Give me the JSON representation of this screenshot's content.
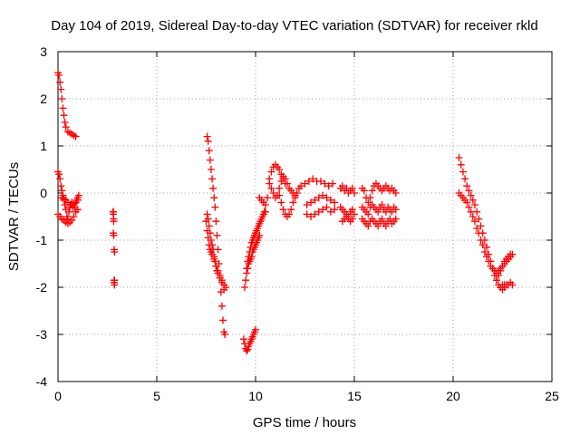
{
  "chart_data": {
    "type": "scatter",
    "title": "Day 104 of 2019, Sidereal Day-to-day VTEC variation (SDTVAR) for receiver rkld",
    "xlabel": "GPS time / hours",
    "ylabel": "SDTVAR / TECUs",
    "xlim": [
      0,
      25
    ],
    "ylim": [
      -4,
      3
    ],
    "xticks": [
      "0",
      "5",
      "10",
      "15",
      "20",
      "25"
    ],
    "yticks": [
      "-4",
      "-3",
      "-2",
      "-1",
      "0",
      "1",
      "2",
      "3"
    ],
    "grid": true,
    "marker": "+",
    "color": "#ff0000",
    "series": [
      {
        "name": "rkld",
        "x": [
          0.0,
          0.05,
          0.1,
          0.15,
          0.2,
          0.25,
          0.3,
          0.35,
          0.4,
          0.5,
          0.6,
          0.7,
          0.8,
          0.9,
          0.0,
          0.05,
          0.1,
          0.15,
          0.2,
          0.25,
          0.3,
          0.35,
          0.4,
          0.45,
          0.5,
          0.55,
          0.6,
          0.65,
          0.7,
          0.75,
          0.8,
          0.85,
          0.9,
          0.95,
          1.0,
          1.05,
          0.0,
          0.1,
          0.2,
          0.3,
          0.4,
          0.5,
          0.6,
          0.7,
          0.8,
          0.9,
          1.0,
          0.2,
          0.3,
          0.4,
          0.5,
          0.6,
          0.7,
          0.8,
          0.9,
          1.0,
          2.78,
          2.8,
          2.82,
          2.84,
          2.86,
          2.8,
          2.82,
          2.84,
          2.86,
          2.8,
          2.82,
          2.84,
          2.86,
          7.55,
          7.6,
          7.65,
          7.7,
          7.75,
          7.8,
          7.85,
          7.9,
          7.95,
          8.0,
          8.05,
          8.1,
          8.15,
          8.2,
          8.25,
          8.3,
          8.35,
          8.4,
          8.45,
          7.55,
          7.6,
          7.65,
          7.7,
          7.75,
          7.8,
          7.85,
          7.9,
          7.95,
          8.0,
          8.05,
          8.1,
          8.2,
          8.3,
          8.4,
          8.5,
          7.5,
          7.55,
          7.6,
          7.65,
          7.7,
          7.75,
          7.8,
          7.9,
          8.0,
          8.1,
          8.2,
          8.3,
          8.4,
          9.4,
          9.45,
          9.5,
          9.55,
          9.6,
          9.65,
          9.7,
          9.75,
          9.8,
          9.85,
          9.9,
          9.95,
          10.0,
          9.45,
          9.5,
          9.55,
          9.6,
          9.65,
          9.7,
          9.75,
          9.8,
          9.85,
          9.9,
          9.95,
          10.0,
          10.05,
          10.1,
          10.15,
          10.2,
          9.55,
          9.6,
          9.65,
          9.7,
          9.75,
          9.8,
          9.85,
          9.9,
          9.95,
          10.0,
          10.05,
          10.1,
          10.15,
          10.2,
          10.25,
          10.3,
          10.35,
          10.4,
          10.45,
          10.5,
          10.2,
          10.3,
          10.4,
          10.5,
          10.6,
          10.7,
          10.8,
          10.9,
          11.0,
          11.1,
          11.2,
          11.3,
          11.4,
          11.5,
          10.7,
          10.8,
          10.9,
          11.0,
          11.1,
          11.2,
          11.3,
          11.4,
          11.5,
          11.6,
          11.7,
          11.8,
          11.9,
          12.0,
          11.2,
          11.3,
          11.4,
          11.5,
          11.6,
          11.7,
          11.8,
          11.9,
          12.0,
          12.1,
          12.2,
          12.3,
          12.5,
          12.7,
          12.9,
          13.1,
          13.3,
          13.5,
          13.7,
          13.9,
          12.6,
          12.8,
          13.0,
          13.2,
          13.4,
          13.6,
          13.8,
          14.0,
          12.6,
          12.8,
          13.0,
          13.2,
          13.4,
          13.6,
          13.8,
          14.0,
          14.3,
          14.4,
          14.5,
          14.6,
          14.7,
          14.8,
          14.9,
          15.0,
          14.3,
          14.4,
          14.5,
          14.6,
          14.7,
          14.8,
          14.9,
          15.0,
          14.4,
          14.5,
          14.6,
          14.7,
          14.8,
          14.9,
          15.4,
          15.5,
          15.6,
          15.7,
          15.8,
          15.9,
          16.0,
          16.1,
          16.2,
          16.3,
          16.4,
          16.5,
          16.6,
          16.7,
          16.8,
          16.9,
          17.0,
          17.1,
          15.4,
          15.5,
          15.6,
          15.7,
          15.8,
          15.9,
          16.0,
          16.1,
          16.2,
          16.3,
          16.4,
          16.5,
          16.6,
          16.7,
          16.8,
          16.9,
          17.0,
          17.1,
          15.4,
          15.5,
          15.6,
          15.7,
          15.8,
          15.9,
          16.0,
          16.1,
          16.2,
          16.3,
          16.4,
          16.5,
          16.6,
          16.7,
          16.8,
          16.9,
          17.0,
          17.1,
          20.3,
          20.4,
          20.5,
          20.6,
          20.7,
          20.8,
          20.9,
          21.0,
          21.1,
          21.2,
          21.3,
          21.4,
          21.5,
          21.6,
          21.7,
          21.8,
          21.9,
          22.0,
          22.1,
          22.2,
          22.3,
          22.4,
          22.5,
          22.6,
          20.3,
          20.4,
          20.5,
          20.6,
          20.7,
          20.8,
          20.9,
          21.0,
          21.1,
          21.2,
          21.3,
          21.4,
          21.5,
          21.6,
          21.7,
          21.8,
          21.9,
          22.0,
          22.1,
          22.2,
          22.3,
          22.4,
          22.5,
          22.6,
          22.7,
          22.8,
          22.9,
          22.2,
          22.3,
          22.4,
          22.5,
          22.6,
          22.7,
          22.8,
          22.9,
          23.0,
          22.4,
          22.5,
          22.6,
          22.7,
          22.8,
          22.9,
          23.0
        ],
        "y": [
          2.55,
          2.5,
          2.35,
          2.2,
          2.0,
          1.8,
          1.65,
          1.5,
          1.4,
          1.3,
          1.28,
          1.25,
          1.22,
          1.2,
          0.45,
          0.4,
          0.3,
          0.15,
          0.05,
          -0.05,
          -0.15,
          -0.25,
          -0.35,
          -0.5,
          -0.55,
          -0.4,
          -0.3,
          -0.25,
          -0.2,
          -0.3,
          -0.25,
          -0.3,
          -0.2,
          -0.15,
          -0.1,
          -0.05,
          -0.45,
          -0.5,
          -0.55,
          -0.58,
          -0.62,
          -0.65,
          -0.62,
          -0.58,
          -0.5,
          -0.4,
          -0.35,
          -0.1,
          -0.12,
          -0.15,
          -0.2,
          -0.25,
          -0.25,
          -0.22,
          -0.2,
          -0.15,
          -0.4,
          -0.45,
          -0.55,
          -1.85,
          -1.95,
          -0.85,
          -0.9,
          -1.2,
          -1.25,
          -0.4,
          -0.6,
          -1.9,
          -1.85,
          1.2,
          1.1,
          0.9,
          0.7,
          0.5,
          0.3,
          0.1,
          -0.1,
          -0.3,
          -0.6,
          -0.9,
          -1.2,
          -1.5,
          -1.8,
          -2.1,
          -2.4,
          -2.7,
          -2.95,
          -3.0,
          -0.45,
          -0.55,
          -0.7,
          -0.85,
          -1.0,
          -1.1,
          -1.2,
          -1.35,
          -1.45,
          -1.55,
          -1.65,
          -1.7,
          -1.8,
          -1.85,
          -1.95,
          -2.0,
          -0.6,
          -0.8,
          -0.95,
          -1.1,
          -1.2,
          -1.25,
          -1.3,
          -1.4,
          -1.55,
          -1.65,
          -1.75,
          -1.9,
          -2.05,
          -3.1,
          -3.2,
          -3.3,
          -3.35,
          -3.32,
          -3.25,
          -3.2,
          -3.15,
          -3.1,
          -3.05,
          -3.0,
          -2.95,
          -2.9,
          -2.0,
          -1.85,
          -1.7,
          -1.6,
          -1.5,
          -1.45,
          -1.4,
          -1.35,
          -1.25,
          -1.2,
          -1.15,
          -1.1,
          -1.05,
          -1.0,
          -0.95,
          -0.9,
          -1.6,
          -1.45,
          -1.35,
          -1.25,
          -1.15,
          -1.05,
          -1.0,
          -0.95,
          -0.9,
          -0.85,
          -0.8,
          -0.75,
          -0.7,
          -0.65,
          -0.6,
          -0.55,
          -0.5,
          -0.45,
          -0.4,
          -0.4,
          -0.1,
          -0.15,
          -0.2,
          -0.25,
          -0.1,
          0.2,
          0.45,
          0.55,
          0.6,
          0.55,
          0.5,
          0.4,
          0.3,
          0.2,
          0.3,
          0.1,
          0.0,
          -0.1,
          -0.05,
          0.1,
          0.25,
          0.35,
          0.3,
          0.2,
          0.1,
          0.05,
          0.0,
          -0.05,
          -0.05,
          -0.2,
          -0.35,
          -0.45,
          -0.5,
          -0.45,
          -0.35,
          -0.2,
          -0.1,
          0.0,
          0.1,
          0.15,
          0.2,
          0.25,
          0.3,
          0.25,
          0.25,
          0.2,
          0.15,
          0.2,
          -0.25,
          -0.2,
          -0.15,
          -0.1,
          -0.05,
          -0.1,
          -0.15,
          -0.2,
          -0.45,
          -0.5,
          -0.45,
          -0.4,
          -0.35,
          -0.3,
          -0.4,
          -0.35,
          0.1,
          0.15,
          0.05,
          0.1,
          0.0,
          0.05,
          0.1,
          0.0,
          -0.3,
          -0.35,
          -0.4,
          -0.45,
          -0.5,
          -0.4,
          -0.35,
          -0.45,
          -0.6,
          -0.55,
          -0.5,
          -0.55,
          -0.6,
          -0.55,
          0.1,
          0.05,
          -0.1,
          -0.2,
          -0.1,
          0.05,
          0.15,
          0.2,
          0.15,
          0.1,
          0.05,
          0.1,
          0.15,
          0.1,
          0.05,
          0.1,
          0.05,
          0.0,
          -0.3,
          -0.35,
          -0.4,
          -0.45,
          -0.3,
          -0.25,
          -0.3,
          -0.35,
          -0.4,
          -0.3,
          -0.25,
          -0.35,
          -0.4,
          -0.3,
          -0.35,
          -0.4,
          -0.3,
          -0.35,
          -0.55,
          -0.6,
          -0.65,
          -0.7,
          -0.6,
          -0.55,
          -0.6,
          -0.65,
          -0.7,
          -0.6,
          -0.55,
          -0.65,
          -0.7,
          -0.6,
          -0.55,
          -0.65,
          -0.6,
          -0.55,
          0.75,
          0.6,
          0.45,
          0.3,
          0.15,
          0.05,
          -0.05,
          -0.15,
          -0.25,
          -0.4,
          -0.55,
          -0.7,
          -0.85,
          -1.0,
          -1.15,
          -1.3,
          -1.45,
          -1.6,
          -1.75,
          -1.85,
          -1.95,
          -2.0,
          -1.95,
          -1.95,
          0.0,
          -0.05,
          -0.1,
          -0.15,
          -0.2,
          -0.3,
          -0.4,
          -0.5,
          -0.6,
          -0.75,
          -0.85,
          -1.0,
          -1.1,
          -1.25,
          -1.35,
          -1.45,
          -1.55,
          -1.6,
          -1.65,
          -1.7,
          -1.65,
          -1.6,
          -1.55,
          -1.45,
          -1.4,
          -1.35,
          -1.3,
          -1.85,
          -1.75,
          -1.65,
          -1.55,
          -1.5,
          -1.45,
          -1.4,
          -1.35,
          -1.3,
          -2.0,
          -2.05,
          -2.0,
          -1.95,
          -1.95,
          -1.9,
          -1.95
        ]
      }
    ]
  }
}
